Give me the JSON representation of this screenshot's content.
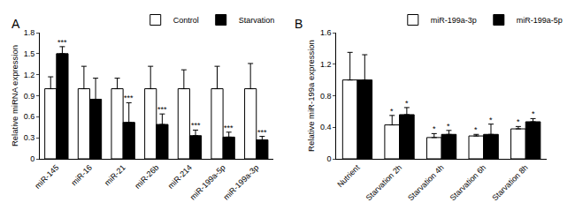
{
  "chart_data": [
    {
      "type": "bar",
      "panel": "A",
      "y_label": "Relative miRNA expression",
      "categories": [
        "miR-145",
        "miR-16",
        "miR-21",
        "miR-26b",
        "miR-214",
        "miR-199a-5p",
        "miR-199a-3p"
      ],
      "series": [
        {
          "name": "Control",
          "color": "#ffffff",
          "values": [
            1.0,
            1.0,
            1.0,
            1.0,
            1.0,
            1.0,
            1.0
          ],
          "error": [
            0.17,
            0.32,
            0.15,
            0.32,
            0.27,
            0.32,
            0.36
          ],
          "significance": [
            null,
            null,
            null,
            null,
            null,
            null,
            null
          ]
        },
        {
          "name": "Starvation",
          "color": "#000000",
          "values": [
            1.5,
            0.85,
            0.52,
            0.49,
            0.33,
            0.31,
            0.27
          ],
          "error": [
            0.1,
            0.3,
            0.28,
            0.15,
            0.08,
            0.07,
            0.05
          ],
          "significance": [
            "***",
            null,
            "***",
            "***",
            "***",
            "***",
            "***"
          ]
        }
      ],
      "ylim": [
        0,
        1.8
      ],
      "yticks": [
        0,
        0.3,
        0.6,
        0.9,
        1.2,
        1.5,
        1.8
      ],
      "grid": false,
      "legend": "top"
    },
    {
      "type": "bar",
      "panel": "B",
      "y_label": "Relative miR-199a expression",
      "categories": [
        "Nutrient",
        "Starvation 2h",
        "Starvation 4h",
        "Starvation 6h",
        "Starvation 8h"
      ],
      "series": [
        {
          "name": "miR-199a-3p",
          "color": "#ffffff",
          "values": [
            1.0,
            0.43,
            0.27,
            0.29,
            0.38
          ],
          "error": [
            0.35,
            0.12,
            0.05,
            0.02,
            0.03
          ],
          "significance": [
            null,
            "*",
            "*",
            "*",
            "*"
          ]
        },
        {
          "name": "miR-199a-5p",
          "color": "#000000",
          "values": [
            1.0,
            0.56,
            0.31,
            0.31,
            0.47
          ],
          "error": [
            0.32,
            0.09,
            0.05,
            0.13,
            0.04
          ],
          "significance": [
            null,
            "*",
            "*",
            "*",
            "*"
          ]
        }
      ],
      "ylim": [
        0,
        1.6
      ],
      "yticks": [
        0,
        0.4,
        0.8,
        1.2,
        1.6
      ],
      "grid": false,
      "legend": "top"
    }
  ]
}
